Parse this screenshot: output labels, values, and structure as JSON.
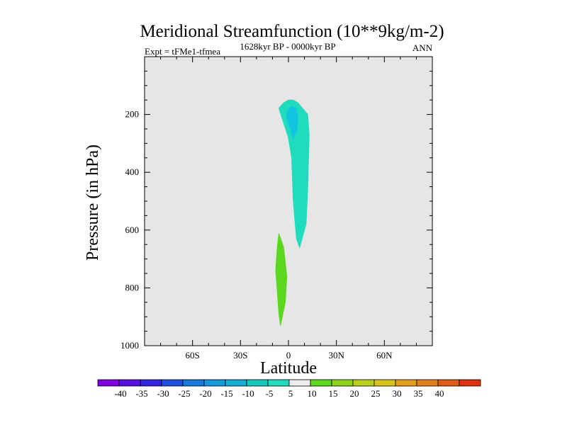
{
  "chart_data": {
    "type": "contour",
    "title": "Meridional Streamfunction (10**9kg/m-2)",
    "left_label": "Expt = tFMe1-tfmea",
    "center_label": "1628kyr BP - 0000kyr BP",
    "right_label": "ANN",
    "xlabel": "Latitude",
    "ylabel": "Pressure (in hPa)",
    "xlim": [
      -90,
      90
    ],
    "ylim": [
      1000,
      0
    ],
    "x_ticks": [
      {
        "value": -60,
        "label": "60S"
      },
      {
        "value": -30,
        "label": "30S"
      },
      {
        "value": 0,
        "label": "0"
      },
      {
        "value": 30,
        "label": "30N"
      },
      {
        "value": 60,
        "label": "60N"
      }
    ],
    "y_ticks": [
      {
        "value": 200,
        "label": "200"
      },
      {
        "value": 400,
        "label": "400"
      },
      {
        "value": 600,
        "label": "600"
      },
      {
        "value": 800,
        "label": "800"
      },
      {
        "value": 1000,
        "label": "1000"
      }
    ],
    "background_color": "#e6e6e6",
    "regions": [
      {
        "name": "negative-cell-upper",
        "level": "-10 to -5",
        "color": "#1fdcbf",
        "points": [
          [
            -6,
            178
          ],
          [
            -3,
            160
          ],
          [
            0,
            150
          ],
          [
            3,
            150
          ],
          [
            6,
            160
          ],
          [
            9,
            180
          ],
          [
            12,
            200
          ],
          [
            13,
            270
          ],
          [
            12,
            460
          ],
          [
            11,
            580
          ],
          [
            8,
            640
          ],
          [
            7,
            660
          ],
          [
            5,
            630
          ],
          [
            3,
            500
          ],
          [
            2,
            350
          ],
          [
            0,
            280
          ],
          [
            -3,
            230
          ]
        ]
      },
      {
        "name": "negative-cell-core",
        "level": "-15 to -10",
        "color": "#11c4e0",
        "points": [
          [
            -1,
            190
          ],
          [
            2,
            172
          ],
          [
            5,
            180
          ],
          [
            6,
            215
          ],
          [
            5,
            258
          ],
          [
            3,
            285
          ],
          [
            1,
            245
          ],
          [
            -1,
            212
          ]
        ]
      },
      {
        "name": "positive-cell-lower",
        "level": "5 to 10",
        "color": "#5ad81e",
        "points": [
          [
            -6,
            612
          ],
          [
            -3,
            660
          ],
          [
            -1,
            760
          ],
          [
            -2,
            850
          ],
          [
            -5,
            930
          ],
          [
            -6,
            890
          ],
          [
            -7,
            810
          ],
          [
            -8,
            740
          ],
          [
            -7,
            660
          ]
        ]
      }
    ],
    "colorbar": {
      "levels": [
        "-40",
        "-35",
        "-30",
        "-25",
        "-20",
        "-15",
        "-10",
        "-5",
        "5",
        "10",
        "15",
        "20",
        "25",
        "30",
        "35",
        "40"
      ],
      "colors": [
        "#8000e0",
        "#5a10e0",
        "#3325e0",
        "#2050e0",
        "#1878dc",
        "#1698dc",
        "#14b0d4",
        "#15c8c0",
        "#1fdcbf",
        "#ececec",
        "#5ad81e",
        "#8ed21c",
        "#b8d21c",
        "#d8c41c",
        "#e0a01a",
        "#e0801a",
        "#e05c18",
        "#e03010"
      ]
    }
  }
}
